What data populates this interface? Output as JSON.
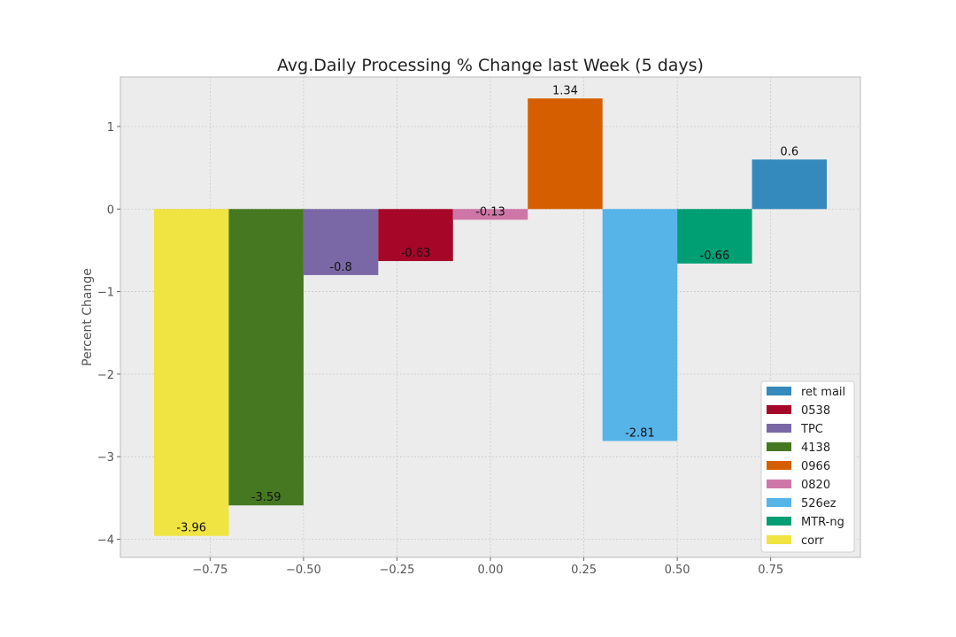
{
  "chart_data": {
    "type": "bar",
    "title": "Avg.Daily Processing % Change last Week (5 days)",
    "xlabel": "",
    "ylabel": "Percent Change",
    "xlim": [
      -0.99,
      0.99
    ],
    "ylim": [
      -4.22,
      1.6
    ],
    "xticks": [
      -0.75,
      -0.5,
      -0.25,
      0.0,
      0.25,
      0.5,
      0.75
    ],
    "xtick_labels": [
      "−0.75",
      "−0.50",
      "−0.25",
      "0.00",
      "0.25",
      "0.50",
      "0.75"
    ],
    "yticks": [
      1,
      0,
      -1,
      -2,
      -3,
      -4
    ],
    "ytick_labels": [
      "1",
      "0",
      "−1",
      "−2",
      "−3",
      "−4"
    ],
    "grid": true,
    "legend_position": "lower-right",
    "bar_width": 0.2,
    "series": [
      {
        "name": "corr",
        "x": -0.8,
        "value": -3.96,
        "label": "-3.96",
        "color": "#F0E442"
      },
      {
        "name": "4138",
        "x": -0.6,
        "value": -3.59,
        "label": "-3.59",
        "color": "#467821"
      },
      {
        "name": "TPC",
        "x": -0.4,
        "value": -0.8,
        "label": "-0.8",
        "color": "#7A68A6"
      },
      {
        "name": "0538",
        "x": -0.2,
        "value": -0.63,
        "label": "-0.63",
        "color": "#A60628"
      },
      {
        "name": "0820",
        "x": 0.0,
        "value": -0.13,
        "label": "-0.13",
        "color": "#CF76A8"
      },
      {
        "name": "0966",
        "x": 0.2,
        "value": 1.34,
        "label": "1.34",
        "color": "#D55E00"
      },
      {
        "name": "526ez",
        "x": 0.4,
        "value": -2.81,
        "label": "-2.81",
        "color": "#56B4E9"
      },
      {
        "name": "MTR-ng",
        "x": 0.6,
        "value": -0.66,
        "label": "-0.66",
        "color": "#009E73"
      },
      {
        "name": "ret mail",
        "x": 0.8,
        "value": 0.6,
        "label": "0.6",
        "color": "#348ABD"
      }
    ],
    "legend_order": [
      "ret mail",
      "0538",
      "TPC",
      "4138",
      "0966",
      "0820",
      "526ez",
      "MTR-ng",
      "corr"
    ]
  }
}
